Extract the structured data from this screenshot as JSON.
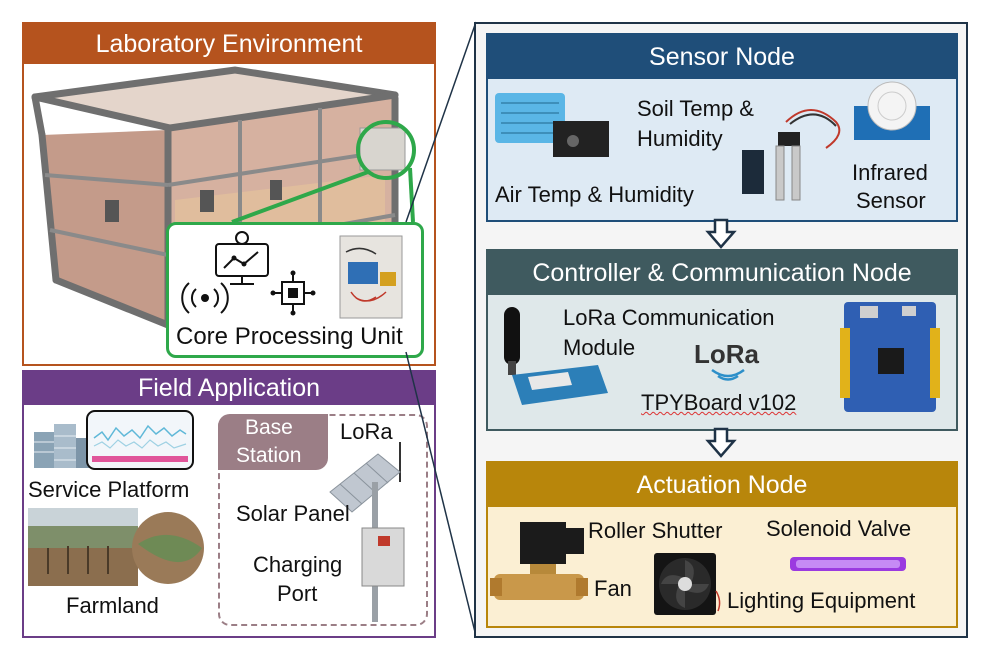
{
  "lab": {
    "title": "Laboratory Environment",
    "core_label": "Core Processing Unit"
  },
  "field": {
    "title": "Field Application",
    "service_platform": "Service Platform",
    "farmland": "Farmland",
    "base_station": [
      "Base",
      "Station"
    ],
    "lora": "LoRa",
    "solar_panel": "Solar Panel",
    "charging_port": [
      "Charging",
      "Port"
    ]
  },
  "sensor": {
    "title": "Sensor Node",
    "soil": [
      "Soil Temp &",
      "Humidity"
    ],
    "air": "Air Temp & Humidity",
    "infrared": [
      "Infrared",
      "Sensor"
    ]
  },
  "controller": {
    "title": "Controller & Communication Node",
    "lora_module": [
      "LoRa Communication",
      "Module"
    ],
    "lora_logo": "LoRa",
    "board": "TPYBoard v102"
  },
  "actuation": {
    "title": "Actuation Node",
    "roller_shutter": "Roller Shutter",
    "solenoid_valve": "Solenoid Valve",
    "fan": "Fan",
    "lighting": "Lighting Equipment"
  },
  "colors": {
    "lab_header": "#b5531e",
    "field_header": "#6b3d87",
    "sensor_header": "#1f4e79",
    "controller_header": "#3f5a5f",
    "actuation_header": "#b8860b",
    "zoom_green": "#2ea84a",
    "panel_border": "#1f3347"
  }
}
